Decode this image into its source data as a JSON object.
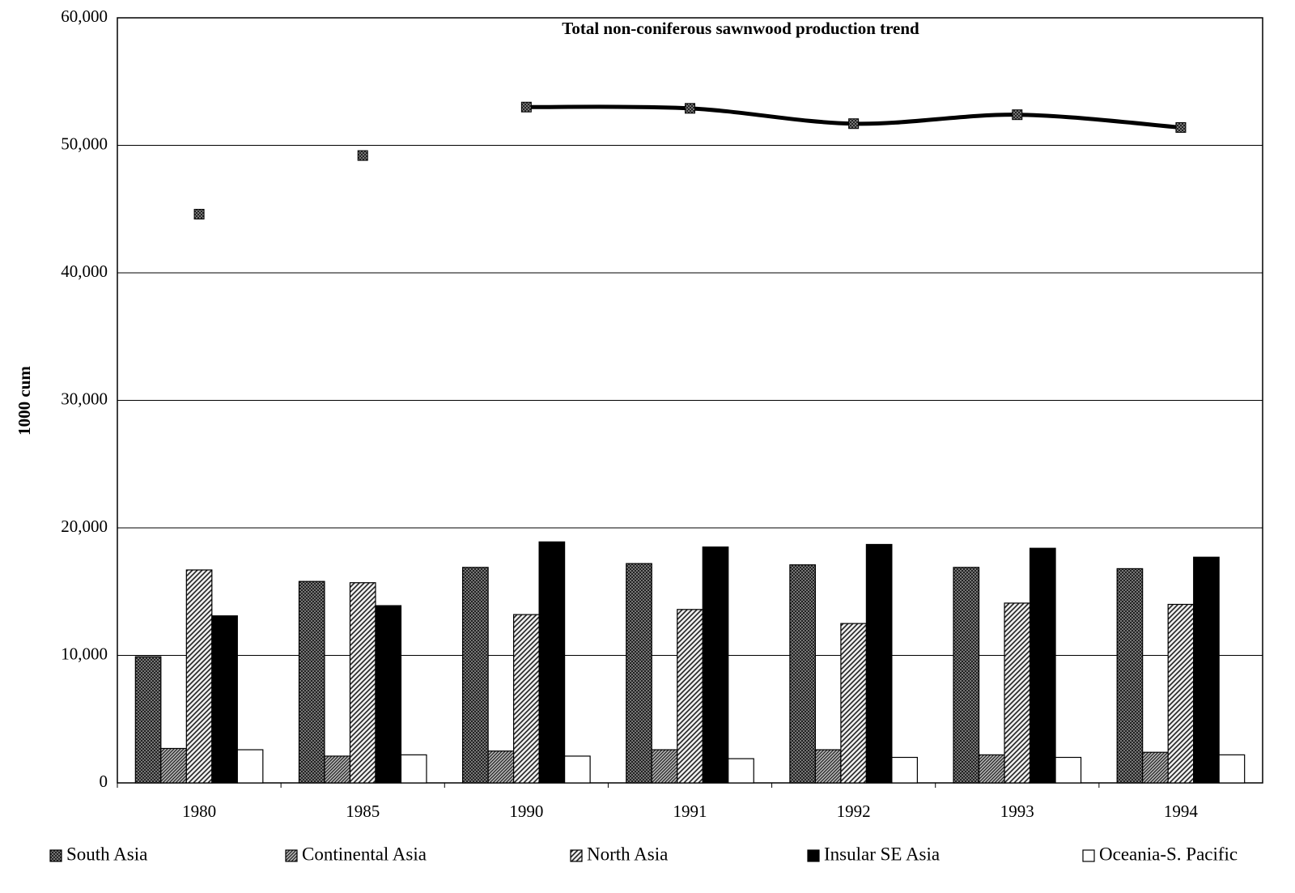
{
  "chart_data": {
    "type": "bar",
    "title": "Total non-coniferous sawnwood production trend",
    "y_label": "1000 cum",
    "categories": [
      "1980",
      "1985",
      "1990",
      "1991",
      "1992",
      "1993",
      "1994"
    ],
    "series": [
      {
        "name": "South Asia",
        "color": "#444444",
        "pattern": "crosshatch",
        "values": [
          9900,
          15800,
          16900,
          17200,
          17100,
          16900,
          16800
        ]
      },
      {
        "name": "Continental Asia",
        "color": "#555555",
        "pattern": "fine-diagonal",
        "values": [
          2700,
          2100,
          2500,
          2600,
          2600,
          2200,
          2400
        ]
      },
      {
        "name": "North Asia",
        "color": "#666666",
        "pattern": "diagonal",
        "values": [
          16700,
          15700,
          13200,
          13600,
          12500,
          14100,
          14000
        ]
      },
      {
        "name": "Insular SE Asia",
        "color": "#000000",
        "pattern": "solid",
        "values": [
          13100,
          13900,
          18900,
          18500,
          18700,
          18400,
          17700
        ]
      },
      {
        "name": "Oceania-S. Pacific",
        "color": "#ffffff",
        "pattern": "solid",
        "values": [
          2600,
          2200,
          2100,
          1900,
          2000,
          2000,
          2200
        ]
      },
      {
        "type": "line",
        "color": "#000000",
        "values": [
          44600,
          49200,
          53000,
          52900,
          51700,
          52400,
          51400
        ]
      }
    ],
    "ylim": [
      0,
      60000
    ],
    "yticks": [
      0,
      {
        "value": 10000,
        "label": "10,000"
      },
      {
        "value": 20000,
        "label": "20,000"
      },
      {
        "value": 30000,
        "label": "30,000"
      },
      {
        "value": 40000,
        "label": "40,000"
      },
      {
        "value": 50000,
        "label": "50,000"
      },
      {
        "value": 60000,
        "label": "60,000"
      }
    ],
    "grid": true,
    "legend": "bottom"
  }
}
